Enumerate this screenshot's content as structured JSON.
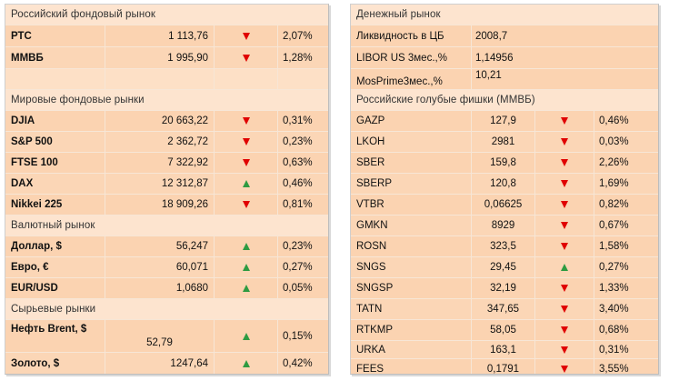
{
  "left": {
    "russian_market": {
      "title": "Российский  фондовый  рынок",
      "rows": [
        {
          "name": "РТС",
          "value": "1 113,76",
          "dir": "down",
          "change": "2,07%"
        },
        {
          "name": "ММВБ",
          "value": "1 995,90",
          "dir": "down",
          "change": "1,28%"
        }
      ]
    },
    "world_markets": {
      "title": "Мировые фондовые рынки",
      "rows": [
        {
          "name": "DJIA",
          "value": "20 663,22",
          "dir": "down",
          "change": "0,31%"
        },
        {
          "name": "S&P 500",
          "value": "2 362,72",
          "dir": "down",
          "change": "0,23%"
        },
        {
          "name": "FTSE 100",
          "value": "7 322,92",
          "dir": "down",
          "change": "0,63%"
        },
        {
          "name": "DAX",
          "value": "12 312,87",
          "dir": "up",
          "change": "0,46%"
        },
        {
          "name": "Nikkei 225",
          "value": "18 909,26",
          "dir": "down",
          "change": "0,81%"
        }
      ]
    },
    "fx_market": {
      "title": "Валютный  рынок",
      "rows": [
        {
          "name": "Доллар, $",
          "value": "56,247",
          "dir": "up",
          "change": "0,23%"
        },
        {
          "name": "Евро, €",
          "value": "60,071",
          "dir": "up",
          "change": "0,27%"
        },
        {
          "name": "EUR/USD",
          "value": "1,0680",
          "dir": "up",
          "change": "0,05%"
        }
      ]
    },
    "commodities": {
      "title": "Сырьевые  рынки",
      "rows": [
        {
          "name": "Нефть Brent, $",
          "value": "52,79",
          "dir": "up",
          "change": "0,15%"
        },
        {
          "name": "Золото, $",
          "value": "1247,64",
          "dir": "up",
          "change": "0,42%"
        }
      ]
    }
  },
  "right": {
    "money_market": {
      "title": "Денежный  рынок",
      "rows": [
        {
          "name": "Ликвидность  в ЦБ",
          "value": "2008,7"
        },
        {
          "name": "LIBOR US 3мес.,%",
          "value": "1,14956"
        },
        {
          "name": "MosPrime3мес.,%",
          "value": "10,21"
        }
      ]
    },
    "blue_chips": {
      "title": "Российские  голубые фишки (ММВБ)",
      "rows": [
        {
          "name": "GAZP",
          "value": "127,9",
          "dir": "down",
          "change": "0,46%"
        },
        {
          "name": "LKOH",
          "value": "2981",
          "dir": "down",
          "change": "0,03%"
        },
        {
          "name": "SBER",
          "value": "159,8",
          "dir": "down",
          "change": "2,26%"
        },
        {
          "name": "SBERP",
          "value": "120,8",
          "dir": "down",
          "change": "1,69%"
        },
        {
          "name": "VTBR",
          "value": "0,06625",
          "dir": "down",
          "change": "0,82%"
        },
        {
          "name": "GMKN",
          "value": "8929",
          "dir": "down",
          "change": "0,67%"
        },
        {
          "name": "ROSN",
          "value": "323,5",
          "dir": "down",
          "change": "1,58%"
        },
        {
          "name": "SNGS",
          "value": "29,45",
          "dir": "up",
          "change": "0,27%"
        },
        {
          "name": "SNGSP",
          "value": "32,19",
          "dir": "down",
          "change": "1,33%"
        },
        {
          "name": "TATN",
          "value": "347,65",
          "dir": "down",
          "change": "3,40%"
        },
        {
          "name": "RTKMP",
          "value": "58,05",
          "dir": "down",
          "change": "0,68%"
        },
        {
          "name": "URKA",
          "value": "163,1",
          "dir": "down",
          "change": "0,31%"
        },
        {
          "name": "FEES",
          "value": "0,1791",
          "dir": "down",
          "change": "3,55%"
        }
      ]
    }
  },
  "colors": {
    "down_arrow": "#e00000",
    "up_arrow": "#2e9b42",
    "cell_bg": "#fbd6b6",
    "header_bg": "#fde4cf"
  },
  "icons": {
    "down": "red-down-triangle-icon",
    "up": "green-up-triangle-icon"
  }
}
